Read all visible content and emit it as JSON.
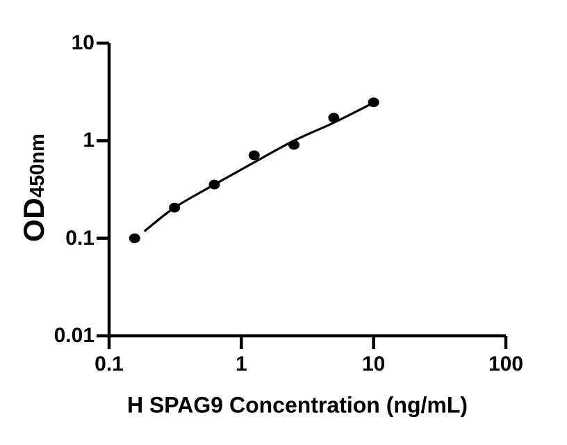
{
  "figure": {
    "background": "#ffffff",
    "ink_color": "#000000"
  },
  "chart_data": {
    "type": "scatter",
    "title": "",
    "xlabel": "H SPAG9 Concentration (ng/mL)",
    "ylabel_main": "OD",
    "ylabel_sub": "450nm",
    "x_scale": "log10",
    "y_scale": "log10",
    "xlim": [
      0.1,
      100
    ],
    "ylim": [
      0.01,
      10
    ],
    "grid": false,
    "legend": "none",
    "x_ticks": [
      {
        "value": 0.1,
        "label": "0.1"
      },
      {
        "value": 1,
        "label": "1"
      },
      {
        "value": 10,
        "label": "10"
      },
      {
        "value": 100,
        "label": "100"
      }
    ],
    "y_ticks": [
      {
        "value": 10,
        "label": "10"
      },
      {
        "value": 1,
        "label": "1"
      },
      {
        "value": 0.1,
        "label": "0.1"
      },
      {
        "value": 0.01,
        "label": "0.01"
      }
    ],
    "series": [
      {
        "name": "H SPAG9 standard points",
        "marker": "filled-circle",
        "color": "#000000",
        "x": [
          0.156,
          0.3125,
          0.625,
          1.25,
          2.5,
          5,
          10
        ],
        "y": [
          0.1,
          0.206,
          0.355,
          0.708,
          0.906,
          1.72,
          2.47
        ]
      }
    ],
    "fit_curve": {
      "name": "standard-curve-fit",
      "color": "#000000",
      "x": [
        0.185,
        0.3125,
        0.625,
        1.25,
        2.5,
        5,
        10
      ],
      "y": [
        0.118,
        0.206,
        0.355,
        0.6,
        1.0,
        1.53,
        2.45
      ]
    }
  }
}
